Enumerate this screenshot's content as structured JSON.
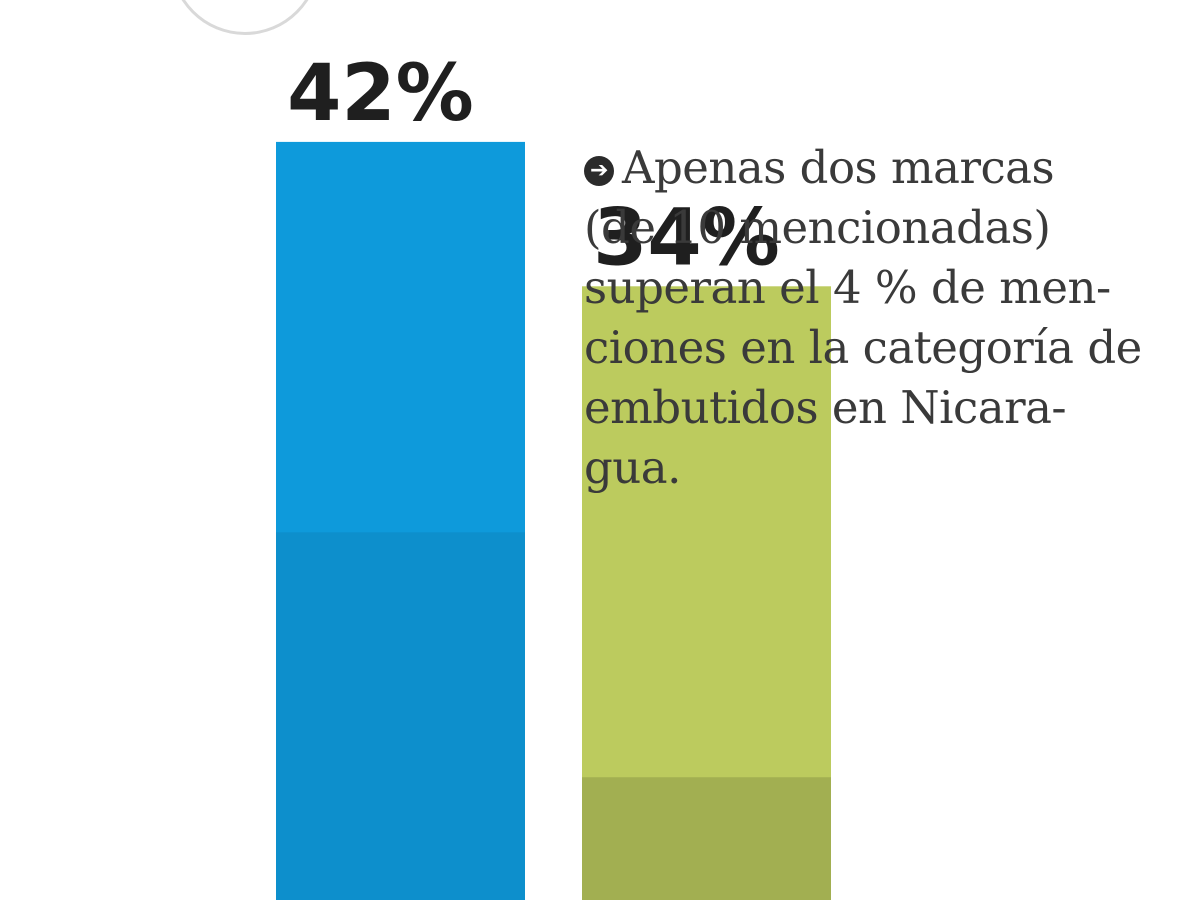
{
  "chart_data": {
    "type": "bar",
    "categories": [
      "",
      ""
    ],
    "values": [
      42,
      34
    ],
    "value_labels": [
      "42%",
      "34%"
    ],
    "colors": [
      "#0E9ADB",
      "#BCCB5E"
    ],
    "title": "",
    "xlabel": "",
    "ylabel": "",
    "ylim": [
      0,
      45
    ]
  },
  "annotation": {
    "icon": "arrow-right-circle-icon",
    "lines": [
      "Apenas dos marcas",
      "(de 10 mencionadas)",
      "superan el 4 % de men-",
      "ciones en la categoría de",
      "embutidos en Nicara-",
      "gua."
    ]
  }
}
